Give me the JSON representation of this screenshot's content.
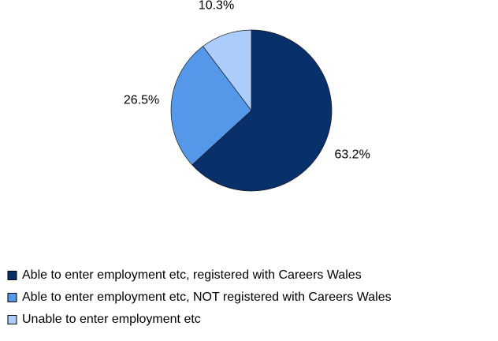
{
  "chart_data": {
    "type": "pie",
    "categories": [
      "Able to enter employment etc, registered with Careers Wales",
      "Able to enter employment etc, NOT registered with Careers Wales",
      "Unable to enter employment etc"
    ],
    "values": [
      63.2,
      26.5,
      10.3
    ],
    "value_labels": [
      "63.2%",
      "26.5%",
      "10.3%"
    ],
    "colors": [
      "#08306b",
      "#5597e8",
      "#acccfa"
    ],
    "legend": "bottom"
  }
}
